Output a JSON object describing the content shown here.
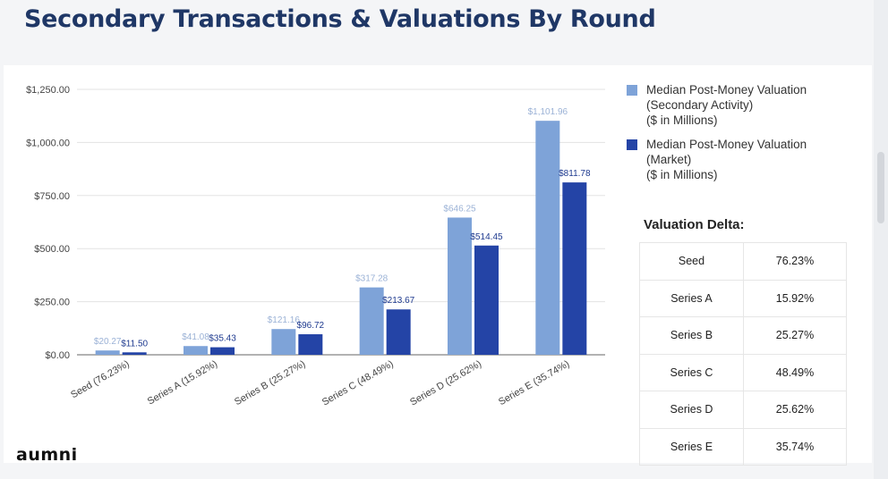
{
  "title": "Secondary Transactions & Valuations By Round",
  "logo_text": "aumni",
  "colors": {
    "secondary": "#7ea3d8",
    "market": "#2444a6",
    "title": "#1f3766"
  },
  "legend": [
    {
      "label_lines": [
        "Median Post-Money Valuation",
        "(Secondary Activity)",
        "($ in Millions)"
      ],
      "color": "#7ea3d8"
    },
    {
      "label_lines": [
        "Median Post-Money Valuation",
        "(Market)",
        "($ in Millions)"
      ],
      "color": "#2444a6"
    }
  ],
  "valuation_delta": {
    "title": "Valuation Delta:",
    "rows": [
      {
        "name": "Seed",
        "value": "76.23%"
      },
      {
        "name": "Series A",
        "value": "15.92%"
      },
      {
        "name": "Series B",
        "value": "25.27%"
      },
      {
        "name": "Series C",
        "value": "48.49%"
      },
      {
        "name": "Series D",
        "value": "25.62%"
      },
      {
        "name": "Series E",
        "value": "35.74%"
      }
    ]
  },
  "chart_data": {
    "type": "bar",
    "categories": [
      "Seed (76.23%)",
      "Series A (15.92%)",
      "Series B (25.27%)",
      "Series C (48.49%)",
      "Series D (25.62%)",
      "Series E (35.74%)"
    ],
    "series": [
      {
        "name": "Median Post-Money Valuation (Secondary Activity) ($ in Millions)",
        "values": [
          20.27,
          41.08,
          121.16,
          317.28,
          646.25,
          1101.96
        ],
        "labels": [
          "$20.27",
          "$41.08",
          "$121.16",
          "$317.28",
          "$646.25",
          "$1,101.96"
        ]
      },
      {
        "name": "Median Post-Money Valuation (Market) ($ in Millions)",
        "values": [
          11.5,
          35.43,
          96.72,
          213.67,
          514.45,
          811.78
        ],
        "labels": [
          "$11.50",
          "$35.43",
          "$96.72",
          "$213.67",
          "$514.45",
          "$811.78"
        ]
      }
    ],
    "y_ticks": [
      0,
      250,
      500,
      750,
      1000,
      1250
    ],
    "y_tick_labels": [
      "$0.00",
      "$250.00",
      "$500.00",
      "$750.00",
      "$1,000.00",
      "$1,250.00"
    ],
    "ylim": [
      0,
      1250
    ],
    "grid": true,
    "legend_position": "right"
  }
}
